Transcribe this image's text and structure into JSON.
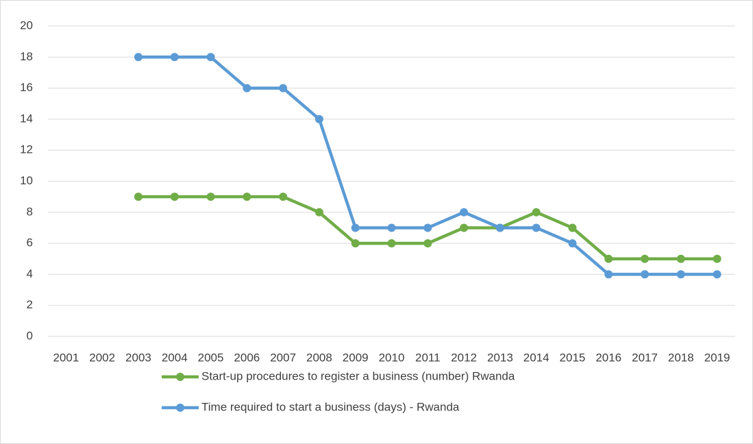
{
  "chart_data": {
    "type": "line",
    "categories": [
      "2001",
      "2002",
      "2003",
      "2004",
      "2005",
      "2006",
      "2007",
      "2008",
      "2009",
      "2010",
      "2011",
      "2012",
      "2013",
      "2014",
      "2015",
      "2016",
      "2017",
      "2018",
      "2019"
    ],
    "series": [
      {
        "name": "Start-up procedures to register a business (number) Rwanda",
        "color": "#70ad47",
        "values": [
          null,
          null,
          9,
          9,
          9,
          9,
          9,
          8,
          6,
          6,
          6,
          7,
          7,
          8,
          7,
          5,
          5,
          5,
          5
        ]
      },
      {
        "name": "Time required to start a business (days) - Rwanda",
        "color": "#5b9bd5",
        "values": [
          null,
          null,
          18,
          18,
          18,
          16,
          16,
          14,
          7,
          7,
          7,
          8,
          7,
          7,
          6,
          4,
          4,
          4,
          4
        ]
      }
    ],
    "ylim": [
      0,
      20
    ],
    "yticks": [
      0,
      2,
      4,
      6,
      8,
      10,
      12,
      14,
      16,
      18,
      20
    ],
    "grid": true
  }
}
